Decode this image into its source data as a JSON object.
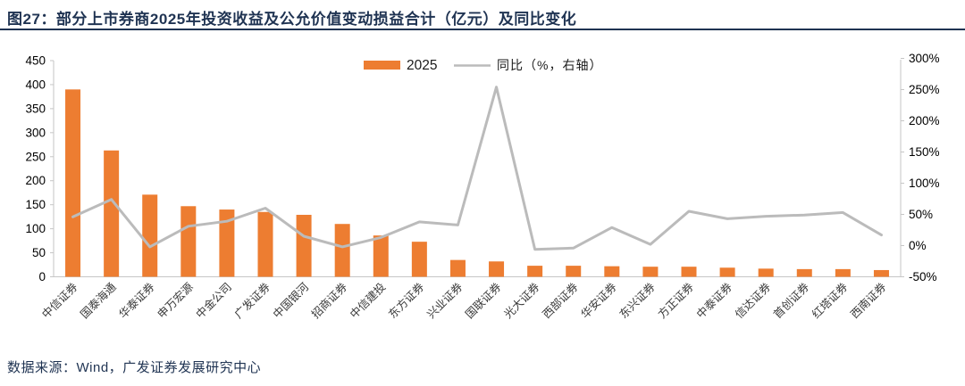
{
  "figure": {
    "title": "图27：部分上市券商2025年投资收益及公允价值变动损益合计（亿元）及同比变化",
    "source": "数据来源：Wind，广发证券发展研究中心"
  },
  "legend": {
    "bar_label": "2025",
    "line_label": "同比（%，右轴）"
  },
  "colors": {
    "bar_orange": "#ED7D31",
    "line_gray": "#BBBBBB",
    "title_navy": "#1F3352",
    "axis_line": "#C6C6C6",
    "axis_text": "#000000",
    "xlabel_text": "#3A3A3A"
  },
  "chart_data": {
    "type": "bar",
    "title": "部分上市券商2025年投资收益及公允价值变动损益合计（亿元）及同比变化",
    "categories": [
      "中信证券",
      "国泰海通",
      "华泰证券",
      "申万宏源",
      "中金公司",
      "广发证券",
      "中国银河",
      "招商证券",
      "中信建投",
      "东方证券",
      "兴业证券",
      "国联证券",
      "光大证券",
      "西部证券",
      "华安证券",
      "东兴证券",
      "方正证券",
      "中泰证券",
      "信达证券",
      "首创证券",
      "红塔证券",
      "西南证券"
    ],
    "series": [
      {
        "name": "2025",
        "type": "bar",
        "axis": "left",
        "values": [
          390,
          263,
          171,
          147,
          140,
          135,
          129,
          110,
          86,
          73,
          35,
          32,
          23,
          23,
          22,
          21,
          21,
          19,
          17,
          16,
          16,
          14
        ]
      },
      {
        "name": "同比（%，右轴）",
        "type": "line",
        "axis": "right",
        "values": [
          46,
          74,
          -2,
          31,
          39,
          60,
          15,
          -2,
          13,
          38,
          33,
          254,
          -6,
          -4,
          29,
          2,
          55,
          43,
          47,
          49,
          53,
          17
        ]
      }
    ],
    "left_axis": {
      "min": 0,
      "max": 450,
      "step": 50,
      "ticks": [
        0,
        50,
        100,
        150,
        200,
        250,
        300,
        350,
        400,
        450
      ]
    },
    "right_axis": {
      "min": -50,
      "max": 300,
      "step": 50,
      "ticks": [
        -50,
        0,
        50,
        100,
        150,
        200,
        250,
        300
      ],
      "suffix": "%"
    },
    "grid": false,
    "legend_position": "top-center",
    "xlabel": "",
    "ylabel": ""
  }
}
